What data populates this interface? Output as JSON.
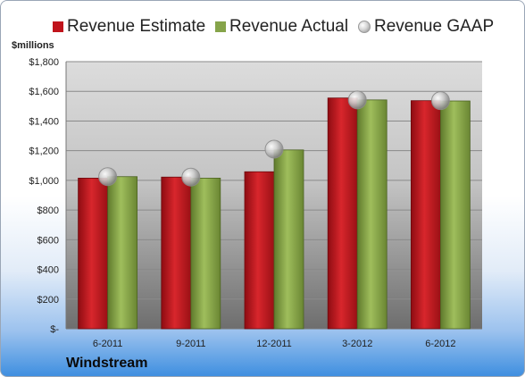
{
  "chart_data": {
    "type": "bar",
    "company": "Windstream",
    "ylabel": "$millions",
    "categories": [
      "6-2011",
      "9-2011",
      "12-2011",
      "3-2012",
      "6-2012"
    ],
    "series": [
      {
        "name": "Revenue Estimate",
        "kind": "bar",
        "color": "#c0141c",
        "values": [
          1015,
          1022,
          1058,
          1555,
          1537
        ]
      },
      {
        "name": "Revenue Actual",
        "kind": "bar",
        "color": "#86a44a",
        "values": [
          1025,
          1015,
          1205,
          1542,
          1535
        ]
      },
      {
        "name": "Revenue GAAP",
        "kind": "marker",
        "color": "#b5b5b5",
        "values": [
          1025,
          1022,
          1210,
          1542,
          1537
        ]
      }
    ],
    "ylim": [
      0,
      1800
    ],
    "yticks": [
      0,
      200,
      400,
      600,
      800,
      1000,
      1200,
      1400,
      1600,
      1800
    ],
    "ytick_labels": [
      "$-",
      "$200",
      "$400",
      "$600",
      "$800",
      "$1,000",
      "$1,200",
      "$1,400",
      "$1,600",
      "$1,800"
    ],
    "grid": true,
    "legend": "top"
  }
}
